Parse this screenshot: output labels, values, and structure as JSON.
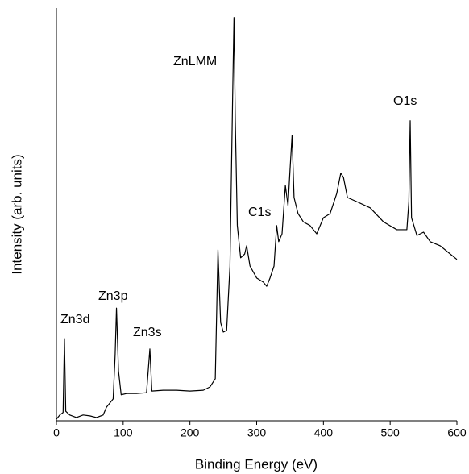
{
  "chart_data": {
    "type": "line",
    "x_label": "Binding Energy (eV)",
    "y_label": "Intensity (arb. units)",
    "annotations": [
      "Zn3d",
      "Zn3p",
      "Zn3s",
      "ZnLMM",
      "C1s",
      "O1s"
    ],
    "color": "#000000",
    "x": [
      0,
      5,
      10,
      12,
      14,
      20,
      30,
      40,
      50,
      60,
      70,
      75,
      80,
      85,
      88,
      90,
      93,
      97,
      105,
      120,
      135,
      140,
      143,
      160,
      180,
      200,
      220,
      230,
      238,
      242,
      246,
      250,
      255,
      260,
      264,
      266,
      268,
      271,
      276,
      282,
      285,
      290,
      300,
      310,
      315,
      320,
      326,
      330,
      333,
      338,
      343,
      347,
      350,
      353,
      356,
      362,
      370,
      380,
      390,
      400,
      410,
      420,
      426,
      430,
      436,
      450,
      470,
      490,
      510,
      525,
      528,
      530,
      532,
      540,
      550,
      560,
      575,
      590,
      600
    ],
    "values": [
      0.4,
      1.4,
      2.0,
      19.9,
      2.3,
      1.4,
      0.8,
      1.4,
      1.2,
      0.8,
      1.4,
      3.3,
      4.3,
      5.3,
      16.0,
      27.3,
      12.1,
      6.3,
      6.6,
      6.6,
      6.8,
      17.4,
      7.2,
      7.4,
      7.4,
      7.2,
      7.4,
      8.2,
      10.2,
      41.4,
      23.8,
      21.5,
      21.9,
      37.5,
      78.5,
      97.7,
      72.7,
      47.3,
      39.5,
      40.4,
      42.4,
      37.5,
      34.6,
      33.6,
      32.6,
      34.6,
      37.5,
      47.3,
      43.4,
      45.3,
      57.0,
      52.1,
      60.9,
      69.1,
      54.1,
      50.2,
      48.2,
      47.3,
      45.3,
      49.2,
      50.2,
      55.1,
      60.0,
      59.0,
      54.1,
      53.1,
      51.6,
      48.2,
      46.3,
      46.3,
      53.1,
      72.7,
      49.2,
      44.9,
      45.7,
      43.4,
      42.4,
      40.4,
      39.1
    ],
    "xlim": [
      0,
      600
    ],
    "xticks": [
      0,
      100,
      200,
      300,
      400,
      500,
      600
    ],
    "ylim": [
      0,
      100
    ],
    "yticks": [],
    "grid": false
  }
}
